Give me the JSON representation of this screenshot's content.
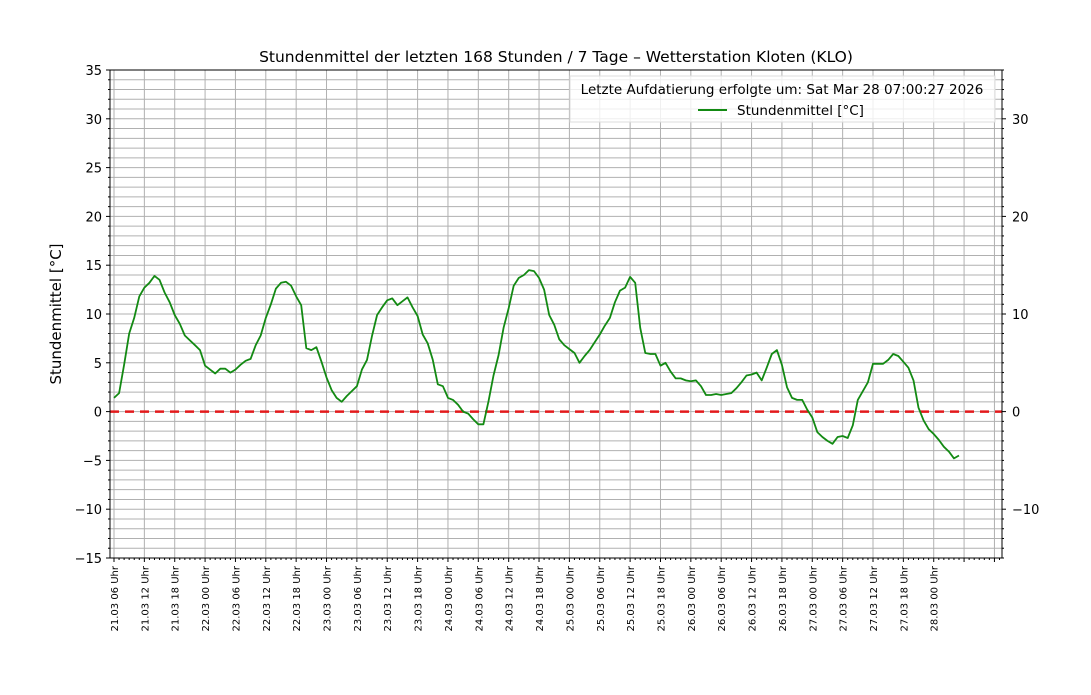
{
  "chart_data": {
    "type": "line",
    "title": "Stundenmittel der letzten 168 Stunden / 7 Tage – Wetterstation Kloten (KLO)",
    "xlabel": "",
    "ylabel": "Stundenmittel [°C]",
    "ylim": [
      -15,
      35
    ],
    "yticks_left": [
      -15,
      -10,
      -5,
      0,
      5,
      10,
      15,
      20,
      25,
      30,
      35
    ],
    "yticks_right": [
      -10,
      0,
      10,
      20,
      30
    ],
    "xticks_hours": [
      0,
      6,
      12,
      18,
      24,
      30,
      36,
      42,
      48,
      54,
      60,
      66,
      72,
      78,
      84,
      90,
      96,
      102,
      108,
      114,
      120,
      126,
      132,
      138,
      144,
      150,
      156,
      162
    ],
    "xtick_labels": [
      "21.03 06 Uhr",
      "21.03 12 Uhr",
      "21.03 18 Uhr",
      "22.03 00 Uhr",
      "22.03 06 Uhr",
      "22.03 12 Uhr",
      "22.03 18 Uhr",
      "23.03 00 Uhr",
      "23.03 06 Uhr",
      "23.03 12 Uhr",
      "23.03 18 Uhr",
      "24.03 00 Uhr",
      "24.03 06 Uhr",
      "24.03 12 Uhr",
      "24.03 18 Uhr",
      "25.03 00 Uhr",
      "25.03 06 Uhr",
      "25.03 12 Uhr",
      "25.03 18 Uhr",
      "26.03 00 Uhr",
      "26.03 06 Uhr",
      "26.03 12 Uhr",
      "26.03 18 Uhr",
      "27.03 00 Uhr",
      "27.03 06 Uhr",
      "27.03 12 Uhr",
      "27.03 18 Uhr",
      "28.03 00 Uhr"
    ],
    "grid": true,
    "legend_placement": "top-right",
    "legend_title": "Letzte Aufdatierung erfolgte um: Sat Mar 28 07:00:27 2026",
    "reference_line": {
      "y": 0,
      "color": "#e31a1c",
      "style": "dashed"
    },
    "series": [
      {
        "name": "Stundenmittel [°C]",
        "color": "#138a13",
        "values": [
          1.4,
          1.9,
          4.8,
          8.0,
          9.6,
          11.8,
          12.7,
          13.2,
          13.9,
          13.5,
          12.2,
          11.2,
          9.9,
          9.0,
          7.8,
          7.3,
          6.8,
          6.3,
          4.7,
          4.3,
          3.9,
          4.4,
          4.4,
          4.0,
          4.3,
          4.8,
          5.2,
          5.4,
          6.8,
          7.8,
          9.6,
          11.0,
          12.6,
          13.2,
          13.3,
          12.9,
          11.8,
          10.9,
          6.5,
          6.3,
          6.6,
          5.1,
          3.5,
          2.2,
          1.4,
          1.0,
          1.6,
          2.1,
          2.6,
          4.3,
          5.3,
          7.8,
          9.9,
          10.7,
          11.4,
          11.6,
          10.9,
          11.3,
          11.7,
          10.7,
          9.8,
          7.9,
          7.0,
          5.3,
          2.8,
          2.6,
          1.4,
          1.2,
          0.7,
          0.0,
          -0.2,
          -0.8,
          -1.3,
          -1.3,
          1.0,
          3.7,
          5.8,
          8.6,
          10.6,
          12.9,
          13.7,
          14.0,
          14.5,
          14.4,
          13.7,
          12.5,
          9.9,
          8.9,
          7.4,
          6.8,
          6.4,
          6.0,
          5.0,
          5.7,
          6.3,
          7.1,
          7.9,
          8.8,
          9.6,
          11.2,
          12.4,
          12.7,
          13.8,
          13.2,
          8.6,
          6.0,
          5.9,
          5.9,
          4.7,
          5.0,
          4.1,
          3.4,
          3.4,
          3.2,
          3.1,
          3.2,
          2.6,
          1.7,
          1.7,
          1.8,
          1.7,
          1.8,
          1.9,
          2.4,
          3.0,
          3.7,
          3.8,
          4.0,
          3.2,
          4.5,
          5.9,
          6.3,
          4.8,
          2.5,
          1.4,
          1.2,
          1.2,
          0.2,
          -0.6,
          -2.1,
          -2.6,
          -3.0,
          -3.3,
          -2.6,
          -2.5,
          -2.7,
          -1.4,
          1.2,
          2.1,
          3.0,
          4.9,
          4.9,
          4.9,
          5.3,
          5.9,
          5.7,
          5.1,
          4.5,
          3.2,
          0.4,
          -0.9,
          -1.8,
          -2.3,
          -2.9,
          -3.6,
          -4.1,
          -4.8,
          -4.5
        ]
      }
    ]
  }
}
